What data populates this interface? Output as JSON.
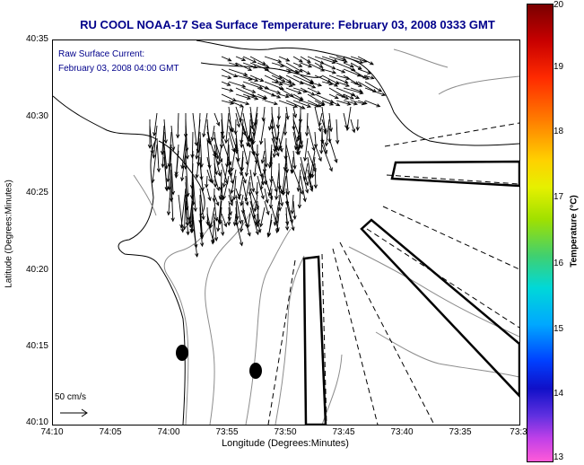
{
  "title": "RU COOL  NOAA-17  Sea Surface Temperature:  February 03, 2008 0333 GMT",
  "overlay": {
    "line1": "Raw Surface Current:",
    "line2": "February 03, 2008 04:00 GMT",
    "scale_label": "50 cm/s"
  },
  "y_axis": {
    "title": "Latitude (Degrees:Minutes)",
    "ticks": [
      "40:35",
      "40:30",
      "40:25",
      "40:20",
      "40:15",
      "40:10"
    ]
  },
  "x_axis": {
    "title": "Longitude (Degrees:Minutes)",
    "ticks": [
      "74:10",
      "74:05",
      "74:00",
      "73:55",
      "73:50",
      "73:45",
      "73:40",
      "73:35",
      "73:3"
    ]
  },
  "colorbar": {
    "title": "Temperature (°C)",
    "ticks": [
      "20",
      "19",
      "18",
      "17",
      "16",
      "15",
      "14",
      "13"
    ],
    "min": 13,
    "max": 20
  },
  "map_data": {
    "lat_range_minutes": [
      10,
      35
    ],
    "lon_range_minutes": [
      30,
      70
    ],
    "buoys": [
      {
        "name": "marker-1",
        "lat": "40:14.7",
        "lon": "73:58.9"
      },
      {
        "name": "marker-2",
        "lat": "40:13.5",
        "lon": "73:52.3"
      }
    ]
  }
}
